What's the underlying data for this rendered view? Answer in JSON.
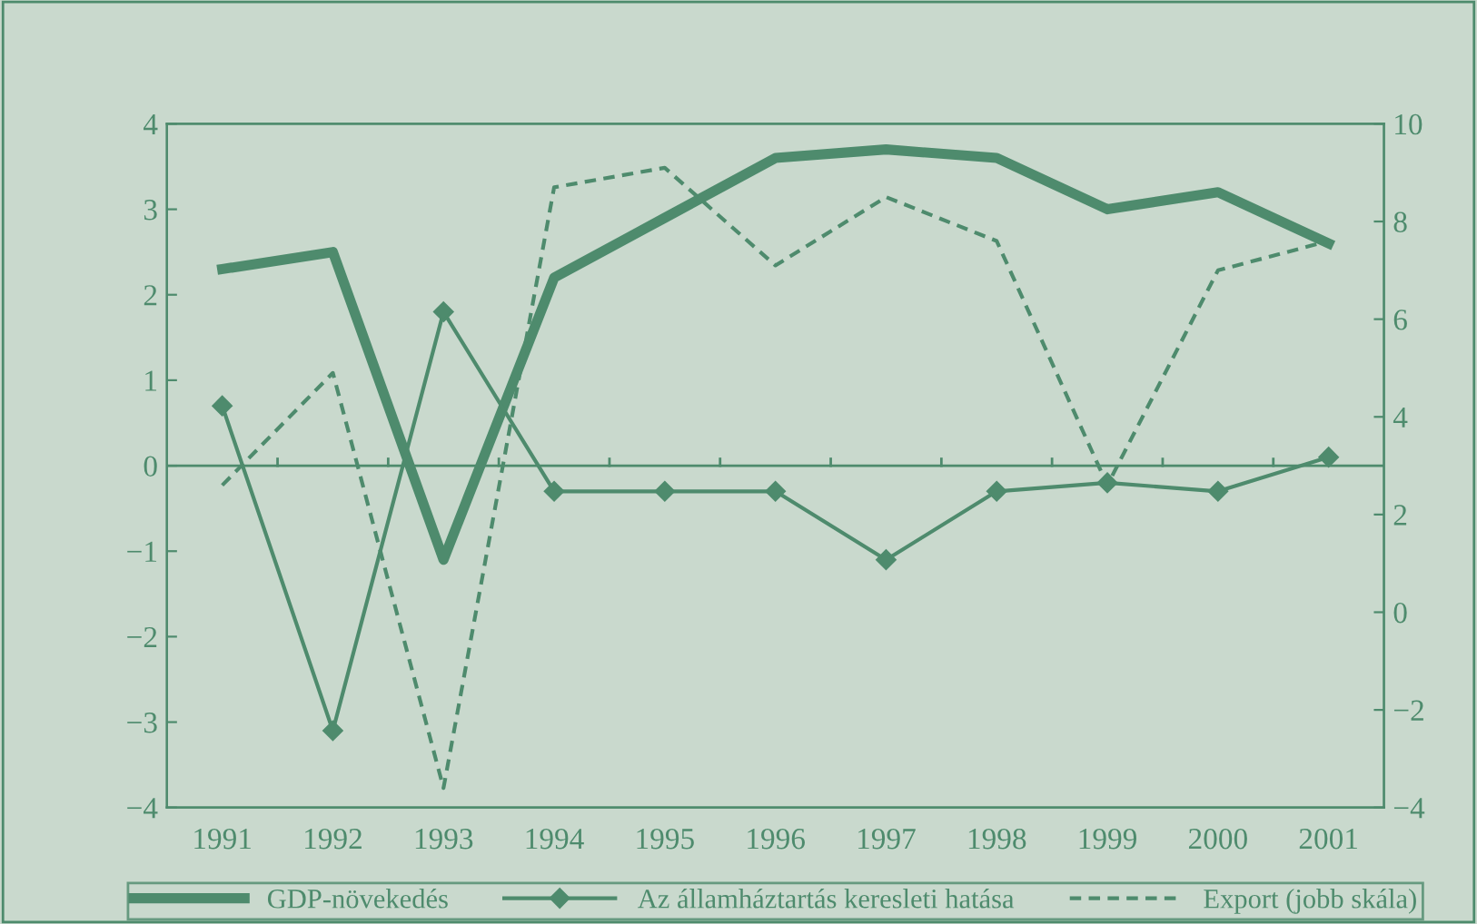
{
  "chart_data": {
    "type": "line",
    "categories": [
      "1991",
      "1992",
      "1993",
      "1994",
      "1995",
      "1996",
      "1997",
      "1998",
      "1999",
      "2000",
      "2001"
    ],
    "series": [
      {
        "name": "GDP-növekedés",
        "color": "#4e8b6d",
        "values": [
          2.3,
          2.5,
          -1.1,
          2.2,
          2.9,
          3.6,
          3.7,
          3.6,
          3.0,
          3.2,
          2.6
        ],
        "line_style": "solid",
        "marker": "none"
      },
      {
        "name": "Az államháztartás keresleti hatása",
        "color": "#4e8b6d",
        "values": [
          0.7,
          -3.1,
          1.8,
          -0.3,
          -0.3,
          -0.3,
          -1.1,
          -0.3,
          -0.2,
          -0.3,
          0.1
        ],
        "line_style": "solid",
        "marker": "diamond"
      },
      {
        "name": "Export (jobb skála)",
        "color": "#4e8b6d",
        "values": [
          2.6,
          4.9,
          -3.6,
          8.7,
          9.1,
          7.1,
          8.5,
          7.6,
          2.6,
          7.0,
          7.6
        ],
        "line_style": "dashed",
        "marker": "none",
        "axis": "y2"
      }
    ],
    "ylim": [
      -4,
      4
    ],
    "yticks": [
      -4,
      -3,
      -2,
      -1,
      0,
      1,
      2,
      3,
      4
    ],
    "y2lim": [
      -4,
      10
    ],
    "y2ticks": [
      -4,
      -2,
      0,
      2,
      4,
      6,
      8,
      10
    ],
    "ref_lines": [
      {
        "axis": "y",
        "value": 0
      }
    ],
    "grid": false,
    "legend": "bottom"
  }
}
